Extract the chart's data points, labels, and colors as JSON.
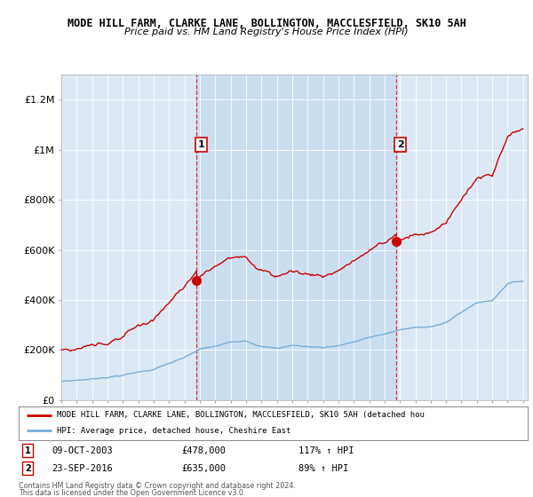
{
  "title": "MODE HILL FARM, CLARKE LANE, BOLLINGTON, MACCLESFIELD, SK10 5AH",
  "subtitle": "Price paid vs. HM Land Registry's House Price Index (HPI)",
  "plot_bg_color": "#dce9f5",
  "shade_color": "#ccddf0",
  "ylim": [
    0,
    1300000
  ],
  "yticks": [
    0,
    200000,
    400000,
    600000,
    800000,
    1000000,
    1200000
  ],
  "ytick_labels": [
    "£0",
    "£200K",
    "£400K",
    "£600K",
    "£800K",
    "£1M",
    "£1.2M"
  ],
  "x_start_year": 1995,
  "x_end_year": 2025,
  "sale1_year": 2003.78,
  "sale1_price": 478000,
  "sale2_year": 2016.73,
  "sale2_price": 635000,
  "red_line_color": "#cc0000",
  "blue_line_color": "#7aaed6",
  "legend_line1": "MODE HILL FARM, CLARKE LANE, BOLLINGTON, MACCLESFIELD, SK10 5AH (detached hou",
  "legend_line2": "HPI: Average price, detached house, Cheshire East",
  "footer1": "Contains HM Land Registry data © Crown copyright and database right 2024.",
  "footer2": "This data is licensed under the Open Government Licence v3.0."
}
